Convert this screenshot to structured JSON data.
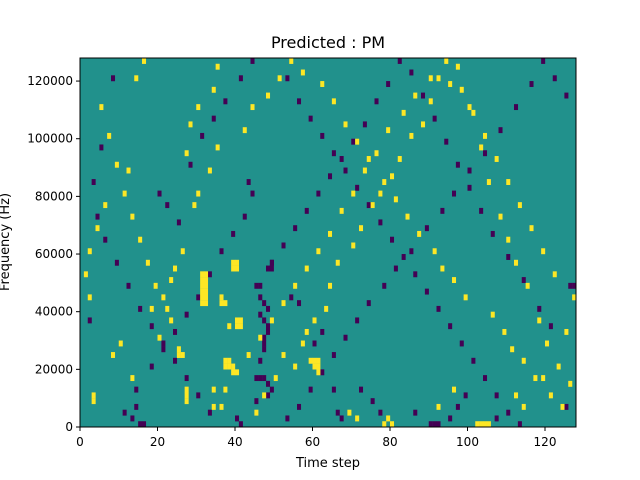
{
  "chart_data": {
    "type": "heatmap",
    "title": "Predicted : PM",
    "xlabel": "Time step",
    "ylabel": "Frequency (Hz)",
    "xlim": [
      0,
      128
    ],
    "ylim": [
      0,
      128000
    ],
    "x_ticks": [
      0,
      20,
      40,
      60,
      80,
      100,
      120
    ],
    "y_ticks": [
      0,
      20000,
      40000,
      60000,
      80000,
      100000,
      120000
    ],
    "x_tick_labels": [
      "0",
      "20",
      "40",
      "60",
      "80",
      "100",
      "120"
    ],
    "y_tick_labels": [
      "0",
      "20000",
      "40000",
      "60000",
      "80000",
      "100000",
      "120000"
    ],
    "n_time_steps": 128,
    "n_frequency_bins": 64,
    "frequency_bin_width_hz": 2000,
    "value_levels": {
      "low": -1,
      "neutral": 0,
      "high": 1
    },
    "colors": {
      "low": "#440154",
      "neutral": "#21918c",
      "high": "#fde725"
    },
    "grid": false,
    "legend": "none",
    "cells_high": [
      [
        31,
        21
      ],
      [
        31,
        22
      ],
      [
        31,
        23
      ],
      [
        31,
        24
      ],
      [
        31,
        25
      ],
      [
        31,
        26
      ],
      [
        32,
        21
      ],
      [
        32,
        22
      ],
      [
        32,
        23
      ],
      [
        32,
        24
      ],
      [
        32,
        25
      ],
      [
        32,
        26
      ],
      [
        27,
        4
      ],
      [
        27,
        5
      ],
      [
        27,
        6
      ],
      [
        25,
        12
      ],
      [
        25,
        13
      ],
      [
        26,
        12
      ],
      [
        37,
        10
      ],
      [
        37,
        11
      ],
      [
        38,
        10
      ],
      [
        38,
        11
      ],
      [
        39,
        9
      ],
      [
        39,
        10
      ],
      [
        41,
        17
      ],
      [
        41,
        18
      ],
      [
        40,
        17
      ],
      [
        40,
        18
      ],
      [
        38,
        17
      ],
      [
        59,
        11
      ],
      [
        60,
        11
      ],
      [
        61,
        11
      ],
      [
        60,
        10
      ],
      [
        61,
        10
      ],
      [
        61,
        9
      ],
      [
        39,
        27
      ],
      [
        39,
        28
      ],
      [
        40,
        27
      ],
      [
        40,
        28
      ],
      [
        102,
        0
      ],
      [
        103,
        0
      ],
      [
        104,
        0
      ],
      [
        105,
        0
      ],
      [
        79,
        1
      ],
      [
        78,
        0
      ],
      [
        80,
        0
      ],
      [
        36,
        22
      ],
      [
        36,
        21
      ],
      [
        37,
        21
      ],
      [
        3,
        4
      ],
      [
        3,
        5
      ],
      [
        8,
        12
      ],
      [
        10,
        14
      ],
      [
        13,
        8
      ],
      [
        18,
        20
      ],
      [
        20,
        15
      ],
      [
        22,
        20
      ],
      [
        23,
        25
      ],
      [
        24,
        27
      ],
      [
        26,
        30
      ],
      [
        29,
        38
      ],
      [
        30,
        40
      ],
      [
        27,
        47
      ],
      [
        28,
        52
      ],
      [
        30,
        55
      ],
      [
        34,
        58
      ],
      [
        35,
        62
      ],
      [
        36,
        3
      ],
      [
        34,
        6
      ],
      [
        45,
        2
      ],
      [
        47,
        5
      ],
      [
        50,
        8
      ],
      [
        52,
        12
      ],
      [
        55,
        10
      ],
      [
        57,
        14
      ],
      [
        58,
        16
      ],
      [
        60,
        18
      ],
      [
        63,
        20
      ],
      [
        64,
        24
      ],
      [
        66,
        28
      ],
      [
        70,
        31
      ],
      [
        72,
        34
      ],
      [
        75,
        38
      ],
      [
        77,
        40
      ],
      [
        80,
        43
      ],
      [
        82,
        46
      ],
      [
        85,
        50
      ],
      [
        88,
        52
      ],
      [
        90,
        56
      ],
      [
        92,
        60
      ],
      [
        95,
        59
      ],
      [
        97,
        62
      ],
      [
        100,
        55
      ],
      [
        103,
        48
      ],
      [
        105,
        42
      ],
      [
        108,
        36
      ],
      [
        110,
        32
      ],
      [
        112,
        28
      ],
      [
        115,
        24
      ],
      [
        118,
        18
      ],
      [
        120,
        14
      ],
      [
        123,
        10
      ],
      [
        125,
        16
      ],
      [
        127,
        22
      ],
      [
        122,
        26
      ],
      [
        119,
        30
      ],
      [
        116,
        34
      ],
      [
        113,
        38
      ],
      [
        110,
        42
      ],
      [
        107,
        46
      ],
      [
        104,
        50
      ],
      [
        101,
        54
      ],
      [
        98,
        58
      ],
      [
        94,
        63
      ],
      [
        90,
        60
      ],
      [
        86,
        57
      ],
      [
        83,
        54
      ],
      [
        79,
        51
      ],
      [
        76,
        47
      ],
      [
        73,
        44
      ],
      [
        70,
        40
      ],
      [
        67,
        37
      ],
      [
        64,
        33
      ],
      [
        61,
        30
      ],
      [
        58,
        27
      ],
      [
        55,
        24
      ],
      [
        52,
        21
      ],
      [
        49,
        18
      ],
      [
        46,
        15
      ],
      [
        43,
        12
      ],
      [
        40,
        9
      ],
      [
        37,
        6
      ],
      [
        34,
        3
      ],
      [
        5,
        55
      ],
      [
        7,
        50
      ],
      [
        9,
        45
      ],
      [
        11,
        40
      ],
      [
        13,
        36
      ],
      [
        15,
        32
      ],
      [
        17,
        28
      ],
      [
        19,
        24
      ],
      [
        21,
        22
      ],
      [
        23,
        18
      ],
      [
        14,
        60
      ],
      [
        16,
        63
      ],
      [
        12,
        44
      ],
      [
        6,
        38
      ],
      [
        4,
        34
      ],
      [
        2,
        30
      ],
      [
        1,
        26
      ],
      [
        2,
        22
      ],
      [
        33,
        44
      ],
      [
        35,
        48
      ],
      [
        42,
        51
      ],
      [
        44,
        55
      ],
      [
        48,
        57
      ],
      [
        51,
        60
      ],
      [
        54,
        63
      ],
      [
        57,
        61
      ],
      [
        62,
        59
      ],
      [
        65,
        56
      ],
      [
        68,
        52
      ],
      [
        71,
        49
      ],
      [
        74,
        46
      ],
      [
        78,
        42
      ],
      [
        81,
        39
      ],
      [
        84,
        36
      ],
      [
        87,
        33
      ],
      [
        91,
        30
      ],
      [
        93,
        27
      ],
      [
        96,
        25
      ],
      [
        99,
        22
      ],
      [
        106,
        19
      ],
      [
        109,
        16
      ],
      [
        111,
        13
      ],
      [
        114,
        11
      ],
      [
        117,
        8
      ],
      [
        121,
        5
      ],
      [
        124,
        3
      ],
      [
        126,
        7
      ],
      [
        69,
        2
      ],
      [
        71,
        1
      ],
      [
        92,
        3
      ],
      [
        96,
        6
      ],
      [
        112,
        5
      ],
      [
        114,
        3
      ],
      [
        119,
        8
      ]
    ],
    "cells_low": [
      [
        15,
        0
      ],
      [
        16,
        0
      ],
      [
        13,
        1
      ],
      [
        14,
        3
      ],
      [
        40,
        1
      ],
      [
        41,
        0
      ],
      [
        45,
        4
      ],
      [
        48,
        5
      ],
      [
        49,
        6
      ],
      [
        48,
        7
      ],
      [
        47,
        8
      ],
      [
        46,
        8
      ],
      [
        45,
        8
      ],
      [
        46,
        11
      ],
      [
        47,
        13
      ],
      [
        47,
        14
      ],
      [
        47,
        15
      ],
      [
        48,
        16
      ],
      [
        48,
        17
      ],
      [
        47,
        18
      ],
      [
        46,
        19
      ],
      [
        48,
        20
      ],
      [
        47,
        21
      ],
      [
        46,
        22
      ],
      [
        45,
        24
      ],
      [
        46,
        24
      ],
      [
        48,
        27
      ],
      [
        49,
        27
      ],
      [
        49,
        28
      ],
      [
        54,
        22
      ],
      [
        56,
        21
      ],
      [
        60,
        14
      ],
      [
        62,
        16
      ],
      [
        65,
        6
      ],
      [
        66,
        2
      ],
      [
        67,
        1
      ],
      [
        72,
        6
      ],
      [
        75,
        4
      ],
      [
        77,
        2
      ],
      [
        86,
        2
      ],
      [
        90,
        0
      ],
      [
        91,
        0
      ],
      [
        92,
        0
      ],
      [
        95,
        1
      ],
      [
        97,
        3
      ],
      [
        99,
        5
      ],
      [
        107,
        1
      ],
      [
        113,
        0
      ],
      [
        126,
        24
      ],
      [
        127,
        24
      ],
      [
        125,
        3
      ],
      [
        121,
        17
      ],
      [
        118,
        20
      ],
      [
        114,
        25
      ],
      [
        110,
        29
      ],
      [
        106,
        33
      ],
      [
        103,
        37
      ],
      [
        100,
        41
      ],
      [
        97,
        45
      ],
      [
        94,
        49
      ],
      [
        91,
        53
      ],
      [
        88,
        57
      ],
      [
        85,
        61
      ],
      [
        82,
        63
      ],
      [
        79,
        59
      ],
      [
        76,
        56
      ],
      [
        73,
        52
      ],
      [
        70,
        49
      ],
      [
        67,
        46
      ],
      [
        64,
        43
      ],
      [
        61,
        40
      ],
      [
        58,
        37
      ],
      [
        55,
        34
      ],
      [
        52,
        31
      ],
      [
        49,
        28
      ],
      [
        43,
        42
      ],
      [
        44,
        40
      ],
      [
        42,
        36
      ],
      [
        39,
        33
      ],
      [
        36,
        30
      ],
      [
        33,
        26
      ],
      [
        30,
        22
      ],
      [
        27,
        19
      ],
      [
        24,
        16
      ],
      [
        21,
        13
      ],
      [
        18,
        10
      ],
      [
        14,
        6
      ],
      [
        11,
        2
      ],
      [
        4,
        36
      ],
      [
        6,
        32
      ],
      [
        9,
        28
      ],
      [
        12,
        24
      ],
      [
        15,
        20
      ],
      [
        18,
        17
      ],
      [
        21,
        14
      ],
      [
        24,
        11
      ],
      [
        27,
        8
      ],
      [
        30,
        5
      ],
      [
        33,
        2
      ],
      [
        53,
        60
      ],
      [
        56,
        56
      ],
      [
        59,
        53
      ],
      [
        62,
        50
      ],
      [
        65,
        47
      ],
      [
        68,
        44
      ],
      [
        71,
        41
      ],
      [
        74,
        38
      ],
      [
        77,
        35
      ],
      [
        80,
        32
      ],
      [
        83,
        29
      ],
      [
        86,
        26
      ],
      [
        89,
        23
      ],
      [
        92,
        20
      ],
      [
        95,
        17
      ],
      [
        98,
        14
      ],
      [
        101,
        11
      ],
      [
        104,
        8
      ],
      [
        107,
        5
      ],
      [
        110,
        2
      ],
      [
        125,
        57
      ],
      [
        122,
        60
      ],
      [
        119,
        63
      ],
      [
        116,
        59
      ],
      [
        112,
        55
      ],
      [
        108,
        51
      ],
      [
        104,
        47
      ],
      [
        100,
        44
      ],
      [
        96,
        40
      ],
      [
        93,
        37
      ],
      [
        89,
        34
      ],
      [
        85,
        30
      ],
      [
        81,
        27
      ],
      [
        78,
        24
      ],
      [
        74,
        21
      ],
      [
        71,
        18
      ],
      [
        68,
        15
      ],
      [
        65,
        12
      ],
      [
        62,
        9
      ],
      [
        59,
        6
      ],
      [
        56,
        3
      ],
      [
        53,
        1
      ],
      [
        20,
        40
      ],
      [
        22,
        38
      ],
      [
        25,
        35
      ],
      [
        28,
        45
      ],
      [
        31,
        50
      ],
      [
        34,
        53
      ],
      [
        37,
        56
      ],
      [
        41,
        60
      ],
      [
        44,
        63
      ],
      [
        8,
        60
      ],
      [
        5,
        48
      ],
      [
        3,
        42
      ],
      [
        2,
        18
      ]
    ]
  }
}
